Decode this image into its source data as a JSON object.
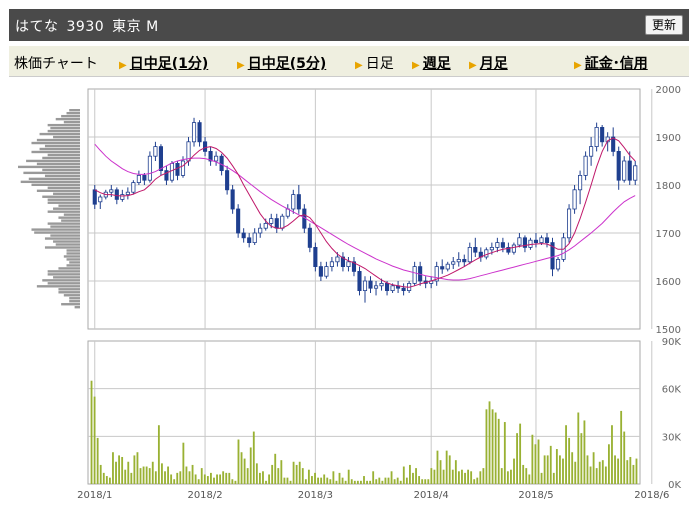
{
  "header": {
    "name": "はてな",
    "code": "3930",
    "market": "東京 M",
    "update_label": "更新"
  },
  "tabs": {
    "label": "株価チャート",
    "items": [
      {
        "label": "日中足(1分)",
        "link": true
      },
      {
        "label": "日中足(5分)",
        "link": true
      },
      {
        "label": "日足",
        "link": false
      },
      {
        "label": "週足",
        "link": true
      },
      {
        "label": "月足",
        "link": true
      },
      {
        "label": "証金･信用",
        "link": true
      }
    ]
  },
  "colors": {
    "up": "#1f3f8f",
    "down": "#1f3f8f",
    "ma_short": "#c0186a",
    "ma_long": "#cc33cc",
    "volume": "#99b133",
    "profile": "#999999",
    "grid": "#c8c8c8"
  },
  "chart_data": [
    {
      "type": "candlestick",
      "title": "",
      "y_ticks": [
        "2000",
        "1900",
        "1800",
        "1700",
        "1600",
        "1500"
      ],
      "ylim": [
        1500,
        2000
      ],
      "x_ticks": [
        "2018/1",
        "2018/2",
        "2018/3",
        "2018/4",
        "2018/5",
        "2018/6"
      ],
      "x_tick_index": [
        0,
        20,
        40,
        61,
        80,
        101
      ],
      "candles": [
        [
          1790,
          1800,
          1750,
          1760
        ],
        [
          1765,
          1780,
          1750,
          1775
        ],
        [
          1775,
          1790,
          1770,
          1785
        ],
        [
          1785,
          1800,
          1775,
          1790
        ],
        [
          1790,
          1795,
          1760,
          1770
        ],
        [
          1770,
          1790,
          1765,
          1780
        ],
        [
          1780,
          1795,
          1770,
          1785
        ],
        [
          1785,
          1810,
          1780,
          1805
        ],
        [
          1805,
          1830,
          1800,
          1820
        ],
        [
          1820,
          1825,
          1800,
          1810
        ],
        [
          1810,
          1870,
          1805,
          1860
        ],
        [
          1860,
          1890,
          1850,
          1880
        ],
        [
          1880,
          1885,
          1820,
          1830
        ],
        [
          1830,
          1840,
          1800,
          1810
        ],
        [
          1810,
          1850,
          1805,
          1845
        ],
        [
          1845,
          1850,
          1810,
          1820
        ],
        [
          1820,
          1860,
          1815,
          1850
        ],
        [
          1850,
          1900,
          1840,
          1890
        ],
        [
          1890,
          1940,
          1880,
          1930
        ],
        [
          1930,
          1935,
          1880,
          1890
        ],
        [
          1890,
          1900,
          1860,
          1870
        ],
        [
          1870,
          1880,
          1840,
          1850
        ],
        [
          1850,
          1870,
          1840,
          1860
        ],
        [
          1860,
          1865,
          1820,
          1830
        ],
        [
          1830,
          1840,
          1780,
          1790
        ],
        [
          1790,
          1800,
          1740,
          1750
        ],
        [
          1750,
          1760,
          1690,
          1700
        ],
        [
          1700,
          1710,
          1680,
          1690
        ],
        [
          1690,
          1700,
          1670,
          1680
        ],
        [
          1680,
          1710,
          1675,
          1700
        ],
        [
          1700,
          1720,
          1690,
          1710
        ],
        [
          1710,
          1730,
          1705,
          1720
        ],
        [
          1720,
          1740,
          1710,
          1730
        ],
        [
          1730,
          1740,
          1700,
          1710
        ],
        [
          1710,
          1740,
          1705,
          1735
        ],
        [
          1735,
          1760,
          1730,
          1750
        ],
        [
          1750,
          1790,
          1740,
          1780
        ],
        [
          1780,
          1800,
          1740,
          1750
        ],
        [
          1750,
          1760,
          1700,
          1710
        ],
        [
          1710,
          1720,
          1660,
          1670
        ],
        [
          1670,
          1680,
          1620,
          1630
        ],
        [
          1630,
          1640,
          1600,
          1610
        ],
        [
          1610,
          1640,
          1605,
          1630
        ],
        [
          1630,
          1650,
          1620,
          1640
        ],
        [
          1640,
          1660,
          1630,
          1650
        ],
        [
          1650,
          1660,
          1620,
          1630
        ],
        [
          1630,
          1650,
          1620,
          1640
        ],
        [
          1640,
          1650,
          1610,
          1620
        ],
        [
          1620,
          1630,
          1570,
          1580
        ],
        [
          1580,
          1610,
          1555,
          1600
        ],
        [
          1600,
          1610,
          1575,
          1585
        ],
        [
          1585,
          1600,
          1570,
          1590
        ],
        [
          1590,
          1605,
          1580,
          1595
        ],
        [
          1595,
          1600,
          1570,
          1580
        ],
        [
          1580,
          1595,
          1575,
          1590
        ],
        [
          1590,
          1600,
          1575,
          1585
        ],
        [
          1585,
          1595,
          1570,
          1580
        ],
        [
          1580,
          1600,
          1575,
          1595
        ],
        [
          1595,
          1640,
          1590,
          1630
        ],
        [
          1630,
          1640,
          1590,
          1600
        ],
        [
          1600,
          1610,
          1585,
          1595
        ],
        [
          1595,
          1610,
          1585,
          1600
        ],
        [
          1600,
          1640,
          1590,
          1630
        ],
        [
          1630,
          1645,
          1615,
          1625
        ],
        [
          1625,
          1640,
          1620,
          1635
        ],
        [
          1635,
          1650,
          1625,
          1640
        ],
        [
          1640,
          1660,
          1630,
          1645
        ],
        [
          1645,
          1655,
          1630,
          1640
        ],
        [
          1640,
          1680,
          1635,
          1670
        ],
        [
          1670,
          1690,
          1650,
          1660
        ],
        [
          1660,
          1670,
          1640,
          1650
        ],
        [
          1650,
          1670,
          1645,
          1665
        ],
        [
          1665,
          1680,
          1655,
          1670
        ],
        [
          1670,
          1690,
          1660,
          1680
        ],
        [
          1680,
          1690,
          1660,
          1670
        ],
        [
          1670,
          1680,
          1655,
          1660
        ],
        [
          1660,
          1680,
          1655,
          1675
        ],
        [
          1675,
          1700,
          1670,
          1690
        ],
        [
          1690,
          1695,
          1660,
          1670
        ],
        [
          1670,
          1690,
          1665,
          1685
        ],
        [
          1685,
          1700,
          1670,
          1680
        ],
        [
          1680,
          1695,
          1675,
          1690
        ],
        [
          1690,
          1700,
          1670,
          1680
        ],
        [
          1680,
          1690,
          1610,
          1625
        ],
        [
          1625,
          1650,
          1620,
          1645
        ],
        [
          1645,
          1700,
          1640,
          1690
        ],
        [
          1690,
          1760,
          1680,
          1750
        ],
        [
          1750,
          1800,
          1740,
          1790
        ],
        [
          1790,
          1830,
          1760,
          1820
        ],
        [
          1820,
          1870,
          1810,
          1860
        ],
        [
          1860,
          1900,
          1840,
          1880
        ],
        [
          1880,
          1930,
          1870,
          1920
        ],
        [
          1920,
          1925,
          1880,
          1890
        ],
        [
          1890,
          1910,
          1870,
          1900
        ],
        [
          1900,
          1920,
          1860,
          1870
        ],
        [
          1870,
          1880,
          1790,
          1810
        ],
        [
          1810,
          1860,
          1805,
          1850
        ],
        [
          1850,
          1870,
          1800,
          1810
        ],
        [
          1810,
          1850,
          1800,
          1840
        ]
      ],
      "ma_short": [
        1790,
        1784,
        1780,
        1780,
        1778,
        1777,
        1778,
        1781,
        1786,
        1790,
        1800,
        1812,
        1820,
        1825,
        1830,
        1835,
        1840,
        1850,
        1862,
        1872,
        1878,
        1880,
        1876,
        1868,
        1856,
        1840,
        1822,
        1800,
        1780,
        1760,
        1740,
        1725,
        1714,
        1710,
        1710,
        1716,
        1725,
        1735,
        1738,
        1732,
        1718,
        1700,
        1682,
        1668,
        1656,
        1648,
        1642,
        1638,
        1632,
        1626,
        1618,
        1610,
        1602,
        1596,
        1592,
        1590,
        1588,
        1587,
        1590,
        1594,
        1597,
        1600,
        1604,
        1608,
        1612,
        1618,
        1624,
        1630,
        1637,
        1644,
        1650,
        1655,
        1659,
        1663,
        1666,
        1668,
        1670,
        1672,
        1674,
        1676,
        1677,
        1678,
        1677,
        1672,
        1666,
        1666,
        1678,
        1700,
        1730,
        1764,
        1800,
        1838,
        1870,
        1892,
        1898,
        1892,
        1878,
        1862,
        1850
      ],
      "ma_long": [
        1885,
        1872,
        1860,
        1850,
        1842,
        1834,
        1828,
        1824,
        1822,
        1822,
        1824,
        1828,
        1834,
        1840,
        1846,
        1850,
        1853,
        1855,
        1856,
        1856,
        1855,
        1852,
        1848,
        1843,
        1837,
        1830,
        1822,
        1813,
        1804,
        1795,
        1786,
        1778,
        1770,
        1763,
        1756,
        1750,
        1744,
        1738,
        1732,
        1725,
        1718,
        1711,
        1704,
        1697,
        1690,
        1683,
        1676,
        1670,
        1664,
        1658,
        1652,
        1646,
        1641,
        1636,
        1631,
        1627,
        1623,
        1620,
        1617,
        1614,
        1611,
        1609,
        1607,
        1605,
        1603,
        1602,
        1602,
        1603,
        1605,
        1608,
        1611,
        1614,
        1617,
        1620,
        1623,
        1626,
        1629,
        1632,
        1635,
        1638,
        1641,
        1644,
        1647,
        1650,
        1653,
        1658,
        1665,
        1673,
        1682,
        1691,
        1700,
        1710,
        1720,
        1732,
        1744,
        1755,
        1765,
        1772,
        1778
      ]
    },
    {
      "type": "bar",
      "title": "",
      "y_ticks": [
        "90K",
        "60K",
        "30K",
        "0K"
      ],
      "ylim": [
        0,
        90000
      ],
      "values": [
        65000,
        55000,
        29000,
        12000,
        7000,
        5000,
        4000,
        20000,
        14000,
        18000,
        17000,
        9000,
        14000,
        7000,
        18000,
        20000,
        10000,
        11000,
        11000,
        10000,
        14000,
        8000,
        37000,
        13000,
        8000,
        11000,
        6000,
        3000,
        7000,
        8000,
        26000,
        11000,
        8000,
        12000,
        6000,
        3000,
        10000,
        6000,
        5000,
        7000,
        4000,
        6000,
        6000,
        8000,
        7000,
        7000,
        3000,
        2000,
        28000,
        20000,
        16000,
        10000,
        23000,
        33000,
        13000,
        7000,
        8000,
        2000,
        6000,
        12000,
        19000,
        10000,
        15000,
        4000,
        4000,
        2000,
        14000,
        12000,
        14000,
        10000,
        3000,
        9000,
        5000,
        7000,
        4000,
        4000,
        6000,
        4000,
        3000,
        8000,
        2000,
        7000,
        4000,
        2000,
        9000,
        3000,
        2000,
        2000,
        2000,
        5000,
        2000,
        2000,
        8000,
        3000,
        4000,
        2000,
        4000,
        4000,
        8000,
        3000,
        4000,
        2000,
        11000,
        4000,
        12000,
        7000,
        10000,
        5000,
        3000,
        3000,
        3000,
        10000,
        9000,
        21000,
        15000,
        9000,
        21000,
        18000,
        9000,
        15000,
        8000,
        9000,
        7000,
        9000,
        8000,
        3000,
        4000,
        8000,
        10000,
        47000,
        52000,
        47000,
        45000,
        41000,
        10000,
        39000,
        8000,
        9000,
        16000,
        32000,
        38000,
        12000,
        10000,
        6000,
        31000,
        25000,
        28000,
        7000,
        18000,
        18000,
        24000,
        7000,
        22000,
        18000,
        16000,
        37000,
        29000,
        20000,
        14000,
        45000,
        32000,
        40000,
        18000,
        11000,
        20000,
        10000,
        14000,
        15000,
        11000,
        25000,
        37000,
        18000,
        16000,
        46000,
        33000,
        15000,
        17000,
        12000,
        16000
      ]
    },
    {
      "type": "bar",
      "title": "",
      "orientation": "horizontal",
      "values": [
        4,
        5,
        7,
        9,
        6,
        12,
        11,
        12,
        15,
        10,
        16,
        18,
        13,
        15,
        18,
        12,
        14,
        20,
        16,
        23,
        14,
        21,
        13,
        19,
        22,
        18,
        12,
        16,
        10,
        14,
        12,
        12,
        8,
        10,
        12,
        6,
        8,
        7,
        12,
        11,
        18,
        17,
        11,
        13,
        10,
        9,
        13,
        5,
        5,
        6,
        5,
        4,
        5,
        8,
        12,
        12,
        10,
        14,
        12,
        16,
        8,
        8,
        6,
        4,
        4,
        7,
        2
      ]
    }
  ]
}
